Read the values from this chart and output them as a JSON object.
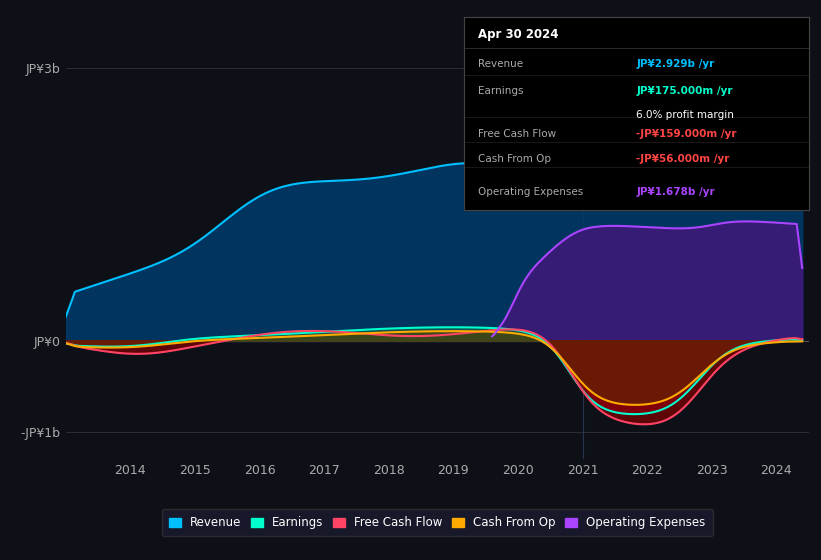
{
  "bg_color": "#0d1117",
  "plot_bg_color": "#0d1117",
  "revenue_color": "#00bfff",
  "earnings_color": "#00ffcc",
  "fcf_color": "#ff4466",
  "cashop_color": "#ffaa00",
  "opex_color": "#aa44ff",
  "x_ticks": [
    2014,
    2015,
    2016,
    2017,
    2018,
    2019,
    2020,
    2021,
    2022,
    2023,
    2024
  ],
  "y_tick_labels": [
    "-JP¥1b",
    "JP¥0",
    "JP¥3b"
  ],
  "info_box": {
    "date": "Apr 30 2024",
    "revenue_label": "Revenue",
    "revenue_val": "JP¥2.929b /yr",
    "earnings_label": "Earnings",
    "earnings_val": "JP¥175.000m /yr",
    "margin_val": "6.0% profit margin",
    "fcf_label": "Free Cash Flow",
    "fcf_val": "-JP¥159.000m /yr",
    "cashop_label": "Cash From Op",
    "cashop_val": "-JP¥56.000m /yr",
    "opex_label": "Operating Expenses",
    "opex_val": "JP¥1.678b /yr"
  },
  "legend_items": [
    {
      "label": "Revenue",
      "color": "#00bfff"
    },
    {
      "label": "Earnings",
      "color": "#00ffcc"
    },
    {
      "label": "Free Cash Flow",
      "color": "#ff4466"
    },
    {
      "label": "Cash From Op",
      "color": "#ffaa00"
    },
    {
      "label": "Operating Expenses",
      "color": "#aa44ff"
    }
  ]
}
